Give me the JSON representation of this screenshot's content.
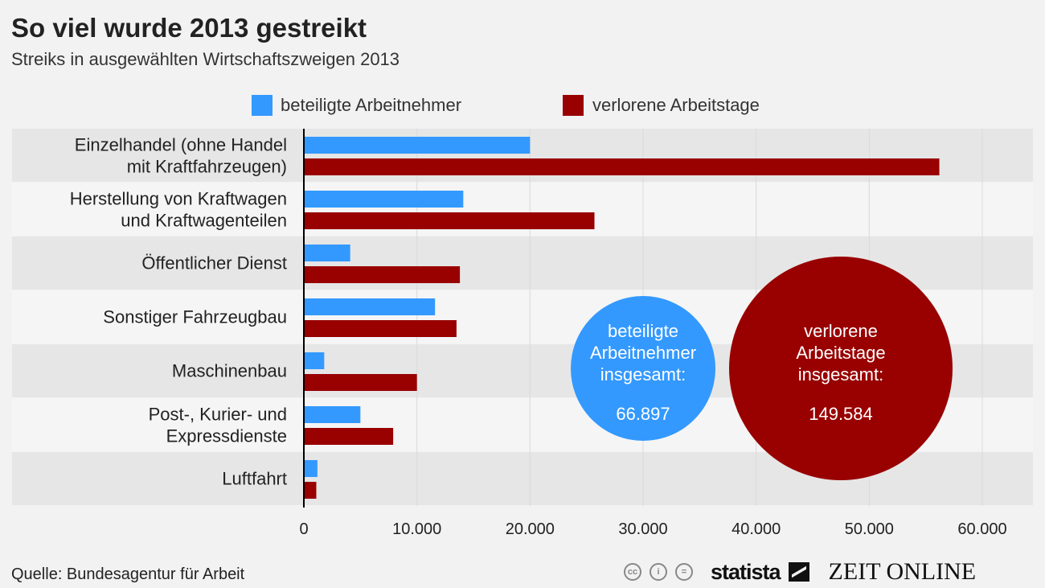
{
  "title": "So viel wurde 2013 gestreikt",
  "subtitle": "Streiks in ausgewählten Wirtschaftszweigen 2013",
  "source": "Quelle: Bundesagentur für Arbeit",
  "logos": {
    "cc": [
      "cc",
      "i",
      "="
    ],
    "statista": "statista",
    "zeit": "ZEIT ONLINE"
  },
  "colors": {
    "blue": "#3399ff",
    "red": "#990000",
    "band_dark": "#e6e6e6",
    "band_light": "#f5f5f5"
  },
  "callouts": {
    "blue": {
      "label": [
        "beteiligte",
        "Arbeitnehmer",
        "insgesamt:"
      ],
      "value": "66.897"
    },
    "red": {
      "label": [
        "verlorene",
        "Arbeitstage",
        "insgesamt:"
      ],
      "value": "149.584"
    }
  },
  "chart_data": {
    "type": "bar",
    "orientation": "horizontal",
    "title": "So viel wurde 2013 gestreikt",
    "categories": [
      [
        "Einzelhandel (ohne Handel",
        "mit Kraftfahrzeugen)"
      ],
      [
        "Herstellung von Kraftwagen",
        "und Kraftwagenteilen"
      ],
      [
        "Öffentlicher Dienst"
      ],
      [
        "Sonstiger Fahrzeugbau"
      ],
      [
        "Maschinenbau"
      ],
      [
        "Post-, Kurier- und",
        "Expressdienste"
      ],
      [
        "Luftfahrt"
      ]
    ],
    "series": [
      {
        "name": "beteiligte Arbeitnehmer",
        "color": "#3399ff",
        "values": [
          20000,
          14100,
          4100,
          11600,
          1800,
          5000,
          1200
        ]
      },
      {
        "name": "verlorene Arbeitstage",
        "color": "#990000",
        "values": [
          56200,
          25700,
          13800,
          13500,
          10000,
          7900,
          1100
        ]
      }
    ],
    "xlim": [
      0,
      64500
    ],
    "ticks": [
      0,
      10000,
      20000,
      30000,
      40000,
      50000,
      60000
    ],
    "tick_labels": [
      "0",
      "10.000",
      "20.000",
      "30.000",
      "40.000",
      "50.000",
      "60.000"
    ],
    "grid": true,
    "legend": "top-center"
  }
}
